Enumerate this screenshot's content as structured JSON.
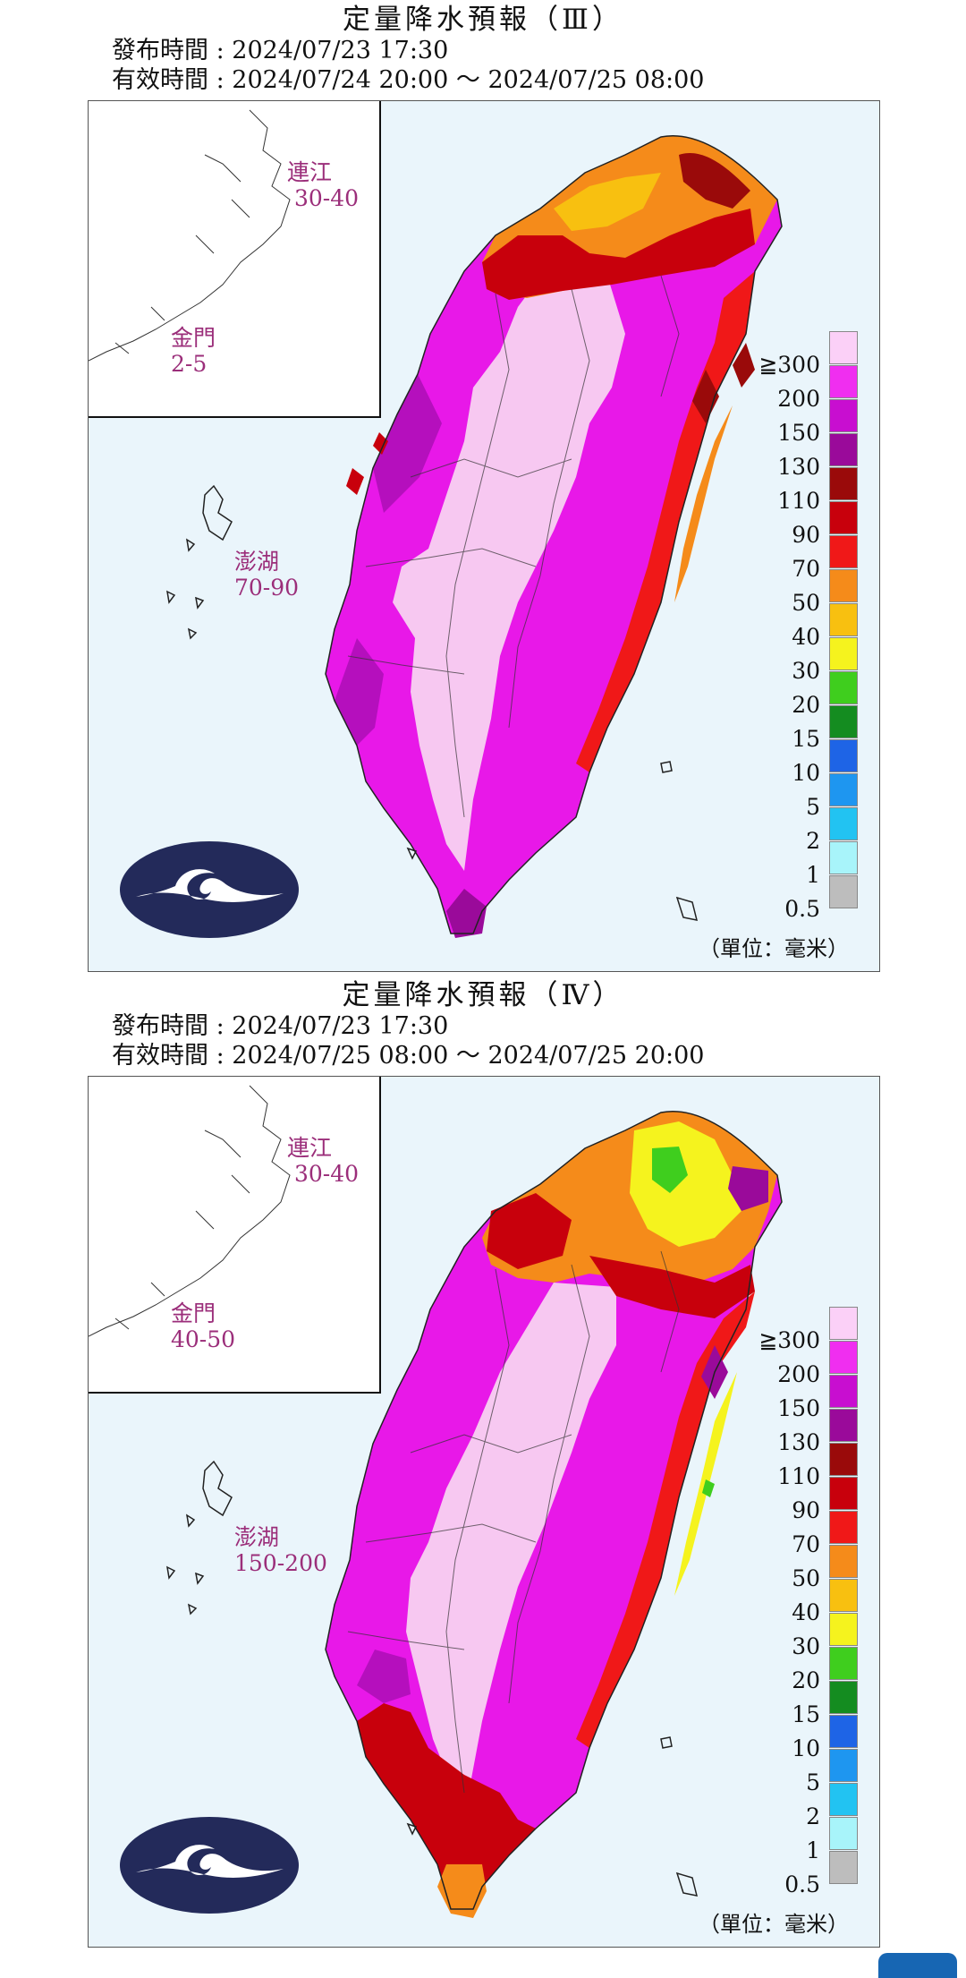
{
  "colors": {
    "sea": "#eaf5fb",
    "land_lightest": "#f7c8f1",
    "label_purple": "#9b2e7a",
    "logo_navy": "#232a5a"
  },
  "legend": {
    "items": [
      {
        "label": "≧300",
        "color": "#fbd0f7"
      },
      {
        "label": "200",
        "color": "#f02ef0"
      },
      {
        "label": "150",
        "color": "#c80ed0"
      },
      {
        "label": "130",
        "color": "#9a0a9a"
      },
      {
        "label": "110",
        "color": "#9a0a0a"
      },
      {
        "label": "90",
        "color": "#c8000c"
      },
      {
        "label": "70",
        "color": "#f01818"
      },
      {
        "label": "50",
        "color": "#f58b1a"
      },
      {
        "label": "40",
        "color": "#f8c010"
      },
      {
        "label": "30",
        "color": "#f5f31e"
      },
      {
        "label": "20",
        "color": "#3fce1e"
      },
      {
        "label": "15",
        "color": "#148c20"
      },
      {
        "label": "10",
        "color": "#1e64e6"
      },
      {
        "label": "5",
        "color": "#1e96f0"
      },
      {
        "label": "2",
        "color": "#22c3f2"
      },
      {
        "label": "1",
        "color": "#a8f4fa"
      },
      {
        "label": "0.5",
        "color": "#bdbdbd"
      }
    ]
  },
  "panels": [
    {
      "title": "定量降水預報（Ⅲ）",
      "issued": "發布時間 : 2024/07/23 17:30",
      "valid": "有效時間 : 2024/07/24 20:00 ～ 2024/07/25 08:00",
      "regions": {
        "lienchiang": {
          "name": "連江",
          "range": "30-40"
        },
        "kinmen": {
          "name": "金門",
          "range": "2-5"
        },
        "penghu": {
          "name": "澎湖",
          "range": "70-90"
        }
      },
      "unit": "（單位：毫米）"
    },
    {
      "title": "定量降水預報（Ⅳ）",
      "issued": "發布時間 : 2024/07/23 17:30",
      "valid": "有效時間 : 2024/07/25 08:00 ～ 2024/07/25 20:00",
      "regions": {
        "lienchiang": {
          "name": "連江",
          "range": "30-40"
        },
        "kinmen": {
          "name": "金門",
          "range": "40-50"
        },
        "penghu": {
          "name": "澎湖",
          "range": "150-200"
        }
      },
      "unit": "（單位：毫米）"
    }
  ]
}
